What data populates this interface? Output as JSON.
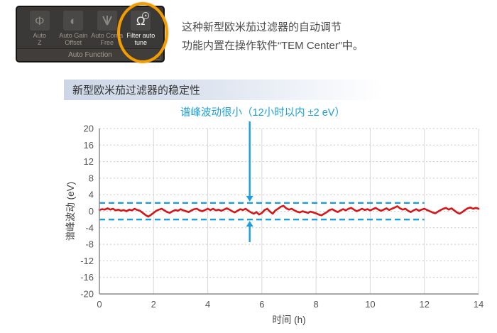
{
  "toolbar": {
    "panel_label": "Auto Function",
    "launcher_glyph": "↘",
    "buttons": [
      {
        "icon": "focus-lens-icon",
        "glyph": "Φ",
        "line1": "Auto",
        "line2": "Z"
      },
      {
        "icon": "contrast-icon",
        "glyph": "◐",
        "line1": "Auto Gain",
        "line2": "Offset"
      },
      {
        "icon": "coma-beam-icon",
        "glyph": "",
        "line1": "Auto Coma",
        "line2": "Free"
      },
      {
        "icon": "omega-filter-icon",
        "glyph": "Ω",
        "badge": "▴",
        "line1": "Filter auto",
        "line2": "tune"
      }
    ],
    "highlight_color": "#f29d00"
  },
  "intro": {
    "line1": "这种新型欧米茄过滤器的自动调节",
    "line2": "功能内置在操作软件“TEM Center”中。"
  },
  "section": {
    "title": "新型欧米茄过滤器的稳定性"
  },
  "chart_data": {
    "type": "line",
    "title": "新型欧米茄过滤器的稳定性",
    "xlabel": "时间 (h)",
    "ylabel": "谱峰波动 (eV)",
    "xlim": [
      0,
      14
    ],
    "ylim": [
      -20,
      20
    ],
    "xticks": [
      0,
      2,
      4,
      6,
      8,
      10,
      12,
      14
    ],
    "yticks": [
      20,
      16,
      12,
      8,
      4,
      0,
      -4,
      -8,
      -12,
      -16,
      -20
    ],
    "grid": true,
    "colors": {
      "trace": "#d61518",
      "limit": "#1b9fde",
      "grid_v": "#d9d9d9",
      "grid_h": "#c9c9c9",
      "axis": "#8c8c8c",
      "tick_text": "#555555"
    },
    "series": [
      {
        "name": "谱峰波动",
        "color": "#d61518",
        "x_start": 0,
        "x_step": 0.1,
        "values": [
          0.3,
          0.5,
          0.4,
          0.7,
          0.4,
          0.6,
          0.2,
          0.4,
          0.1,
          0.3,
          0.0,
          0.4,
          0.2,
          0.6,
          0.3,
          0.1,
          -0.4,
          -0.9,
          -1.3,
          -0.9,
          -0.4,
          0.1,
          0.4,
          0.6,
          0.2,
          -0.2,
          -0.4,
          0.0,
          0.3,
          0.1,
          0.5,
          0.2,
          0.0,
          -0.2,
          0.2,
          0.5,
          0.6,
          0.2,
          0.0,
          0.3,
          0.6,
          0.3,
          0.6,
          0.2,
          0.4,
          0.1,
          0.4,
          0.7,
          0.4,
          0.0,
          -0.3,
          0.1,
          0.5,
          0.3,
          0.6,
          0.1,
          -0.3,
          -0.6,
          -0.2,
          -0.8,
          -0.4,
          0.3,
          0.6,
          -0.1,
          -0.6,
          0.2,
          0.6,
          1.1,
          1.3,
          0.7,
          0.4,
          0.6,
          0.2,
          -0.1,
          -0.3,
          0.0,
          -0.2,
          -0.4,
          -0.1,
          -0.3,
          -0.5,
          -0.8,
          -1.0,
          -0.6,
          -0.2,
          0.3,
          0.5,
          0.1,
          -0.2,
          0.2,
          0.5,
          0.2,
          0.6,
          0.8,
          0.4,
          0.0,
          0.3,
          0.6,
          0.3,
          0.5,
          0.2,
          0.5,
          0.8,
          0.4,
          0.1,
          0.4,
          0.7,
          0.3,
          0.6,
          0.9,
          1.2,
          0.7,
          0.4,
          0.6,
          0.1,
          -0.2,
          0.2,
          0.5,
          0.1,
          0.4,
          0.6,
          0.3,
          0.0,
          -0.3,
          -0.5,
          -0.1,
          0.3,
          0.6,
          0.8,
          0.4,
          0.7,
          0.2,
          -0.3,
          -0.6,
          -0.2,
          0.3,
          0.7,
          0.9,
          0.6,
          0.8,
          0.6
        ]
      }
    ],
    "limit_lines": {
      "upper": 2,
      "lower": -2,
      "x_start": 0,
      "x_end": 12,
      "color": "#1b9fde",
      "style": "dashed"
    },
    "annotation": {
      "text": "谱峰波动很小（12小时以内 ±2 eV）",
      "color": "#1b9fde",
      "arrow_x": 5.55
    }
  }
}
